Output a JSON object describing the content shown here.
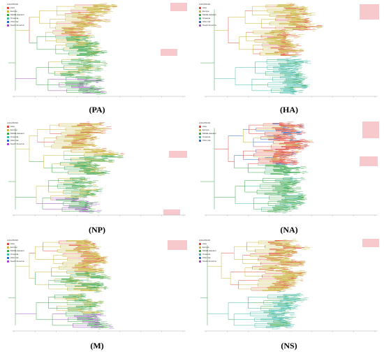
{
  "figure": {
    "panels": [
      {
        "id": "pa",
        "label": "(PA)",
        "legend_title": "LOCATION",
        "legend": [
          "Asia",
          "Europe",
          "Middle Eastern",
          "Oceania",
          "USA Cal",
          "South America"
        ]
      },
      {
        "id": "ha",
        "label": "(HA)",
        "legend_title": "LOCATION",
        "legend": [
          "Asia",
          "Europe",
          "Middle Eastern",
          "Oceania",
          "USA Cal",
          "South America"
        ]
      },
      {
        "id": "np",
        "label": "(NP)",
        "legend_title": "LOCATION",
        "legend": [
          "Asia",
          "Europe",
          "Middle Eastern",
          "Oceania",
          "USA Cal",
          "South America"
        ]
      },
      {
        "id": "na",
        "label": "(NA)",
        "legend_title": "LOCATION",
        "legend": [
          "Asia",
          "Europe",
          "Middle Eastern",
          "Oceania",
          "USA Cal"
        ]
      },
      {
        "id": "m",
        "label": "(M)",
        "legend_title": "LOCATION",
        "legend": [
          "Asia",
          "Europe",
          "Middle Eastern",
          "Oceania",
          "USA Cal",
          "South America"
        ]
      },
      {
        "id": "ns",
        "label": "(NS)",
        "legend_title": "LOCATION",
        "legend": [
          "Asia",
          "Europe",
          "Middle Eastern",
          "Oceania",
          "USA Cal",
          "South America"
        ]
      }
    ],
    "colors": {
      "asia": "#e0473a",
      "europe": "#c9b53a",
      "middle_eastern": "#3aa64a",
      "oceania": "#3fb9a8",
      "usa": "#2f6fc7",
      "south_america": "#a24fc2",
      "highlight": "#f7c9cc"
    }
  }
}
